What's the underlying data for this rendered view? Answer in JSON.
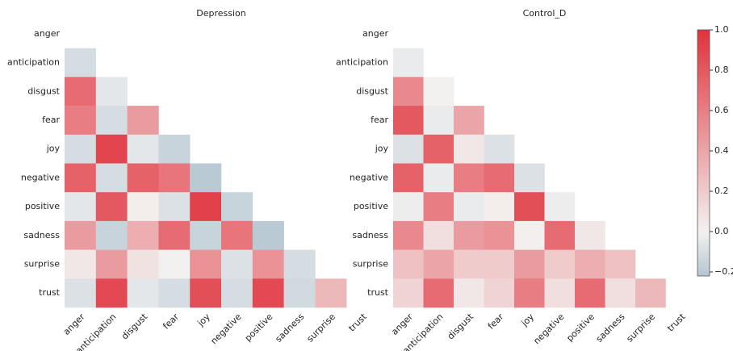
{
  "chart_data": [
    {
      "type": "heatmap",
      "title": "Depression",
      "categories": [
        "anger",
        "anticipation",
        "disgust",
        "fear",
        "joy",
        "negative",
        "positive",
        "sadness",
        "surprise",
        "trust"
      ],
      "values": [
        [],
        [
          -0.1
        ],
        [
          0.7,
          -0.05
        ],
        [
          0.6,
          -0.1,
          0.45
        ],
        [
          -0.1,
          0.9,
          -0.05,
          -0.15
        ],
        [
          0.75,
          -0.1,
          0.75,
          0.65,
          -0.2
        ],
        [
          -0.05,
          0.8,
          0.02,
          -0.08,
          0.92,
          -0.15
        ],
        [
          0.45,
          -0.15,
          0.35,
          0.7,
          -0.15,
          0.65,
          -0.2
        ],
        [
          0.05,
          0.45,
          0.08,
          0.0,
          0.5,
          -0.08,
          0.5,
          -0.1
        ],
        [
          -0.08,
          0.88,
          -0.05,
          -0.1,
          0.85,
          -0.1,
          0.88,
          -0.12,
          0.3
        ]
      ]
    },
    {
      "type": "heatmap",
      "title": "Control_D",
      "categories": [
        "anger",
        "anticipation",
        "disgust",
        "fear",
        "joy",
        "negative",
        "positive",
        "sadness",
        "surprise",
        "trust"
      ],
      "values": [
        [],
        [
          -0.03
        ],
        [
          0.55,
          0.0
        ],
        [
          0.8,
          -0.03,
          0.4
        ],
        [
          -0.08,
          0.75,
          0.05,
          -0.08
        ],
        [
          0.75,
          -0.03,
          0.6,
          0.7,
          -0.08
        ],
        [
          -0.02,
          0.6,
          -0.03,
          0.02,
          0.85,
          -0.02
        ],
        [
          0.55,
          0.1,
          0.45,
          0.5,
          0.01,
          0.7,
          0.05
        ],
        [
          0.25,
          0.4,
          0.2,
          0.2,
          0.45,
          0.2,
          0.35,
          0.25
        ],
        [
          0.15,
          0.7,
          0.05,
          0.15,
          0.6,
          0.1,
          0.7,
          0.1,
          0.3
        ]
      ]
    }
  ],
  "colorbar": {
    "zlim": [
      -0.22,
      1.0
    ],
    "colors": [
      "#b3c6d1",
      "#f3f1f0",
      "#e0323c"
    ],
    "ticks": [
      {
        "value": 1,
        "label": "1.0"
      },
      0.8,
      0.6,
      0.4,
      0.2,
      {
        "value": 0,
        "label": "0.0"
      },
      {
        "value": -0.2,
        "label": "−0.2"
      }
    ]
  }
}
